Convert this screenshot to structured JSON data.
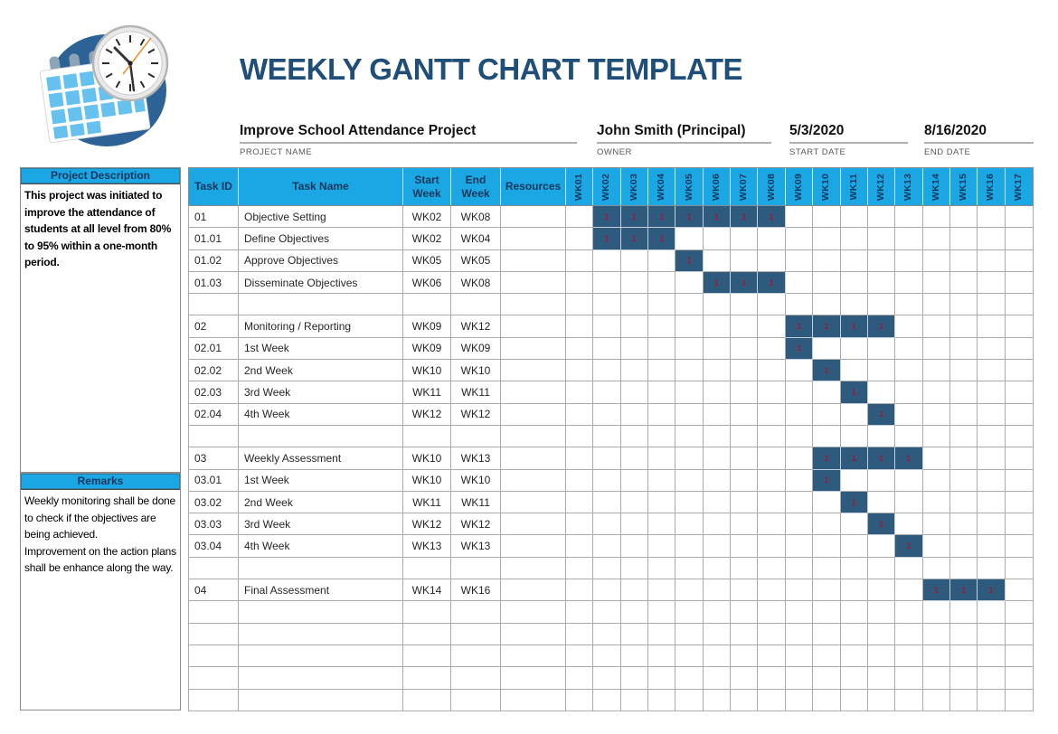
{
  "title": "WEEKLY GANTT CHART TEMPLATE",
  "meta": {
    "fields": [
      {
        "value": "Improve School Attendance Project",
        "label": "PROJECT NAME"
      },
      {
        "value": "John Smith (Principal)",
        "label": "OWNER"
      },
      {
        "value": "5/3/2020",
        "label": "START DATE"
      },
      {
        "value": "8/16/2020",
        "label": "END DATE"
      }
    ]
  },
  "sidebar": {
    "description": {
      "title": "Project Description",
      "text": "This project was initiated to improve the attendance of students at all level from 80% to 95% within a one-month period."
    },
    "remarks": {
      "title": "Remarks",
      "text": "Weekly monitoring shall be done to check if the objectives are being achieved.\nImprovement on the action plans shall be enhance along the way."
    }
  },
  "table": {
    "headers": {
      "task_id": "Task ID",
      "task_name": "Task Name",
      "start_week": "Start\nWeek",
      "end_week": "End\nWeek",
      "resources": "Resources"
    },
    "weeks": [
      "WK01",
      "WK02",
      "WK03",
      "WK04",
      "WK05",
      "WK06",
      "WK07",
      "WK08",
      "WK09",
      "WK10",
      "WK11",
      "WK12",
      "WK13",
      "WK14",
      "WK15",
      "WK16",
      "WK17"
    ],
    "bar_value": "1",
    "rows": [
      {
        "type": "task",
        "id": "01",
        "name": "Objective Setting",
        "start": "WK02",
        "end": "WK08",
        "resources": "",
        "bars": [
          2,
          3,
          4,
          5,
          6,
          7,
          8
        ]
      },
      {
        "type": "task",
        "id": "01.01",
        "name": "Define Objectives",
        "start": "WK02",
        "end": "WK04",
        "resources": "",
        "bars": [
          2,
          3,
          4
        ]
      },
      {
        "type": "task",
        "id": "01.02",
        "name": "Approve Objectives",
        "start": "WK05",
        "end": "WK05",
        "resources": "",
        "bars": [
          5
        ]
      },
      {
        "type": "task",
        "id": "01.03",
        "name": "Disseminate Objectives",
        "start": "WK06",
        "end": "WK08",
        "resources": "",
        "bars": [
          6,
          7,
          8
        ]
      },
      {
        "type": "spacer",
        "id": "",
        "name": "",
        "start": "",
        "end": "",
        "resources": "",
        "bars": []
      },
      {
        "type": "task",
        "id": "02",
        "name": "Monitoring / Reporting",
        "start": "WK09",
        "end": "WK12",
        "resources": "",
        "bars": [
          9,
          10,
          11,
          12
        ]
      },
      {
        "type": "task",
        "id": "02.01",
        "name": "1st Week",
        "start": "WK09",
        "end": "WK09",
        "resources": "",
        "bars": [
          9
        ]
      },
      {
        "type": "task",
        "id": "02.02",
        "name": "2nd Week",
        "start": "WK10",
        "end": "WK10",
        "resources": "",
        "bars": [
          10
        ]
      },
      {
        "type": "task",
        "id": "02.03",
        "name": "3rd Week",
        "start": "WK11",
        "end": "WK11",
        "resources": "",
        "bars": [
          11
        ]
      },
      {
        "type": "task",
        "id": "02.04",
        "name": "4th Week",
        "start": "WK12",
        "end": "WK12",
        "resources": "",
        "bars": [
          12
        ]
      },
      {
        "type": "spacer",
        "id": "",
        "name": "",
        "start": "",
        "end": "",
        "resources": "",
        "bars": []
      },
      {
        "type": "task",
        "id": "03",
        "name": "Weekly Assessment",
        "start": "WK10",
        "end": "WK13",
        "resources": "",
        "bars": [
          10,
          11,
          12,
          13
        ]
      },
      {
        "type": "task",
        "id": "03.01",
        "name": "1st Week",
        "start": "WK10",
        "end": "WK10",
        "resources": "",
        "bars": [
          10
        ]
      },
      {
        "type": "task",
        "id": "03.02",
        "name": "2nd Week",
        "start": "WK11",
        "end": "WK11",
        "resources": "",
        "bars": [
          11
        ]
      },
      {
        "type": "task",
        "id": "03.03",
        "name": "3rd Week",
        "start": "WK12",
        "end": "WK12",
        "resources": "",
        "bars": [
          12
        ]
      },
      {
        "type": "task",
        "id": "03.04",
        "name": "4th Week",
        "start": "WK13",
        "end": "WK13",
        "resources": "",
        "bars": [
          13
        ]
      },
      {
        "type": "spacer",
        "id": "",
        "name": "",
        "start": "",
        "end": "",
        "resources": "",
        "bars": []
      },
      {
        "type": "task",
        "id": "04",
        "name": "Final Assessment",
        "start": "WK14",
        "end": "WK16",
        "resources": "",
        "bars": [
          14,
          15,
          16
        ]
      },
      {
        "type": "empty",
        "id": "",
        "name": "",
        "start": "",
        "end": "",
        "resources": "",
        "bars": []
      },
      {
        "type": "empty",
        "id": "",
        "name": "",
        "start": "",
        "end": "",
        "resources": "",
        "bars": []
      },
      {
        "type": "empty",
        "id": "",
        "name": "",
        "start": "",
        "end": "",
        "resources": "",
        "bars": []
      },
      {
        "type": "empty",
        "id": "",
        "name": "",
        "start": "",
        "end": "",
        "resources": "",
        "bars": []
      },
      {
        "type": "empty",
        "id": "",
        "name": "",
        "start": "",
        "end": "",
        "resources": "",
        "bars": []
      }
    ]
  },
  "chart_data": {
    "type": "table",
    "title": "WEEKLY GANTT CHART TEMPLATE",
    "x": [
      "WK01",
      "WK02",
      "WK03",
      "WK04",
      "WK05",
      "WK06",
      "WK07",
      "WK08",
      "WK09",
      "WK10",
      "WK11",
      "WK12",
      "WK13",
      "WK14",
      "WK15",
      "WK16",
      "WK17"
    ],
    "tasks": [
      {
        "task_id": "01",
        "task_name": "Objective Setting",
        "start_week": "WK02",
        "end_week": "WK08",
        "weeks_active": [
          "WK02",
          "WK03",
          "WK04",
          "WK05",
          "WK06",
          "WK07",
          "WK08"
        ]
      },
      {
        "task_id": "01.01",
        "task_name": "Define Objectives",
        "start_week": "WK02",
        "end_week": "WK04",
        "weeks_active": [
          "WK02",
          "WK03",
          "WK04"
        ]
      },
      {
        "task_id": "01.02",
        "task_name": "Approve Objectives",
        "start_week": "WK05",
        "end_week": "WK05",
        "weeks_active": [
          "WK05"
        ]
      },
      {
        "task_id": "01.03",
        "task_name": "Disseminate Objectives",
        "start_week": "WK06",
        "end_week": "WK08",
        "weeks_active": [
          "WK06",
          "WK07",
          "WK08"
        ]
      },
      {
        "task_id": "02",
        "task_name": "Monitoring / Reporting",
        "start_week": "WK09",
        "end_week": "WK12",
        "weeks_active": [
          "WK09",
          "WK10",
          "WK11",
          "WK12"
        ]
      },
      {
        "task_id": "02.01",
        "task_name": "1st Week",
        "start_week": "WK09",
        "end_week": "WK09",
        "weeks_active": [
          "WK09"
        ]
      },
      {
        "task_id": "02.02",
        "task_name": "2nd Week",
        "start_week": "WK10",
        "end_week": "WK10",
        "weeks_active": [
          "WK10"
        ]
      },
      {
        "task_id": "02.03",
        "task_name": "3rd Week",
        "start_week": "WK11",
        "end_week": "WK11",
        "weeks_active": [
          "WK11"
        ]
      },
      {
        "task_id": "02.04",
        "task_name": "4th Week",
        "start_week": "WK12",
        "end_week": "WK12",
        "weeks_active": [
          "WK12"
        ]
      },
      {
        "task_id": "03",
        "task_name": "Weekly Assessment",
        "start_week": "WK10",
        "end_week": "WK13",
        "weeks_active": [
          "WK10",
          "WK11",
          "WK12",
          "WK13"
        ]
      },
      {
        "task_id": "03.01",
        "task_name": "1st Week",
        "start_week": "WK10",
        "end_week": "WK10",
        "weeks_active": [
          "WK10"
        ]
      },
      {
        "task_id": "03.02",
        "task_name": "2nd Week",
        "start_week": "WK11",
        "end_week": "WK11",
        "weeks_active": [
          "WK11"
        ]
      },
      {
        "task_id": "03.03",
        "task_name": "3rd Week",
        "start_week": "WK12",
        "end_week": "WK12",
        "weeks_active": [
          "WK12"
        ]
      },
      {
        "task_id": "03.04",
        "task_name": "4th Week",
        "start_week": "WK13",
        "end_week": "WK13",
        "weeks_active": [
          "WK13"
        ]
      },
      {
        "task_id": "04",
        "task_name": "Final Assessment",
        "start_week": "WK14",
        "end_week": "WK16",
        "weeks_active": [
          "WK14",
          "WK15",
          "WK16"
        ]
      }
    ],
    "cell_value_when_active": "1"
  },
  "icons": {
    "logo": "calendar-clock-logo"
  },
  "colors": {
    "accent_cyan": "#1BA7E3",
    "header_navy": "#17375D",
    "title_navy": "#1F4E79",
    "gantt_bar_fill": "#2E5A7D",
    "gantt_bar_text": "#9C1B38",
    "grid_line": "#ABABAB",
    "logo_circle_blue": "#2D6296",
    "logo_calendar_blue": "#66C1EE"
  }
}
